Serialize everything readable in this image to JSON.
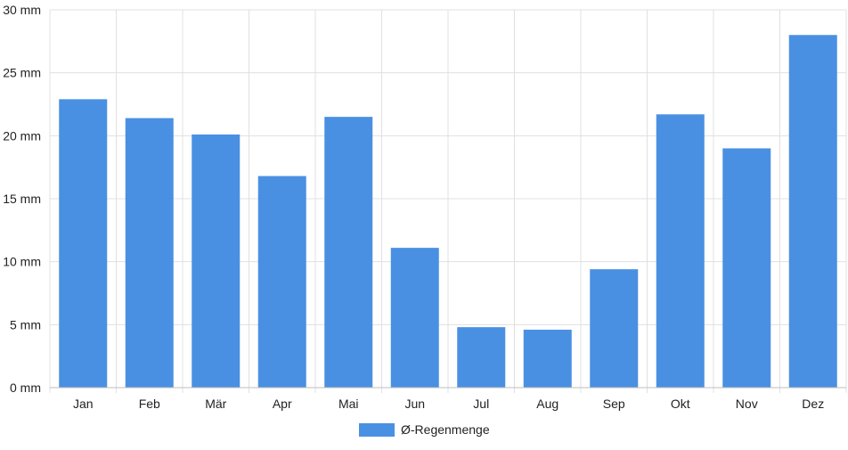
{
  "chart_data": {
    "type": "bar",
    "categories": [
      "Jan",
      "Feb",
      "Mär",
      "Apr",
      "Mai",
      "Jun",
      "Jul",
      "Aug",
      "Sep",
      "Okt",
      "Nov",
      "Dez"
    ],
    "series": [
      {
        "name": "Ø-Regenmenge",
        "values": [
          22.9,
          21.4,
          20.1,
          16.8,
          21.5,
          11.1,
          4.8,
          4.6,
          9.4,
          21.7,
          19.0,
          28.0
        ]
      }
    ],
    "y_ticks": [
      "0 mm",
      "5 mm",
      "10 mm",
      "15 mm",
      "20 mm",
      "25 mm",
      "30 mm"
    ],
    "ylim": [
      0,
      30
    ],
    "y_unit": "mm",
    "grid": true,
    "legend_position": "bottom",
    "colors": {
      "bar": "#4a90e2",
      "grid": "#e0e0e0",
      "axis": "#bfbfbf"
    }
  }
}
